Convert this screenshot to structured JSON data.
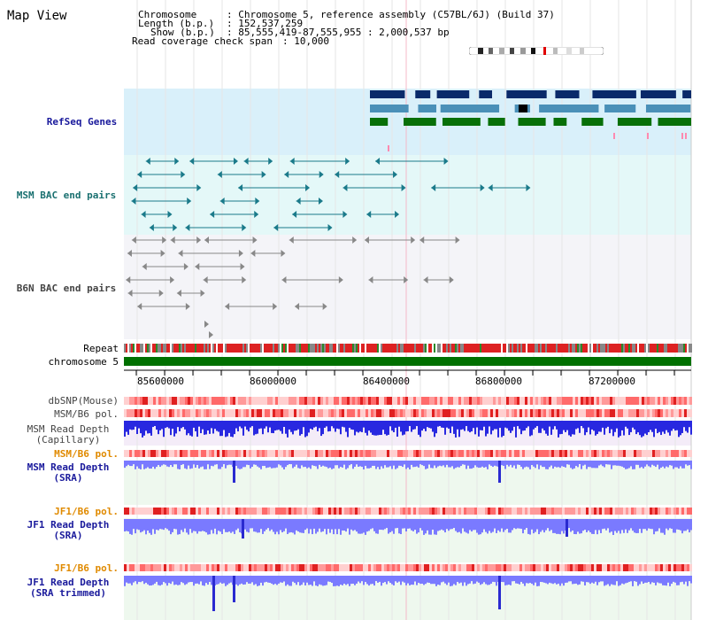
{
  "page": {
    "title": "Map View"
  },
  "info": {
    "chromosome_key": "Chromosome",
    "chromosome_value": ": Chromosome 5, reference assembly (C57BL/6J) (Build 37)",
    "length_key": "Length (b.p.)",
    "length_value": ": 152,537,259",
    "show_key": "Show (b.p.)",
    "show_value": ": 85,555,419-87,555,955 : 2,000,537 bp",
    "coverage_key": "Read coverage check span",
    "coverage_value": ": 10,000"
  },
  "tracks": {
    "refseq": "RefSeq Genes",
    "msm_bac": "MSM BAC end pairs",
    "b6n_bac": "B6N BAC end pairs",
    "repeat": "Repeat",
    "chromosome": "chromosome 5",
    "dbsnp": "dbSNP(Mouse)",
    "msm_b6_pol": "MSM/B6 pol.",
    "msm_depth_cap_1": "MSM Read Depth",
    "msm_depth_cap_2": "(Capillary)",
    "msm_b6_pol_2": "MSM/B6 pol.",
    "msm_depth_sra_1": "MSM Read Depth",
    "msm_depth_sra_2": "(SRA)",
    "jf1_b6_pol": "JF1/B6 pol.",
    "jf1_depth_sra_1": "JF1 Read Depth",
    "jf1_depth_sra_2": "(SRA)",
    "jf1_b6_pol_2": "JF1/B6 pol.",
    "jf1_depth_trim_1": "JF1 Read Depth",
    "jf1_depth_trim_2": "(SRA trimmed)"
  },
  "axis": {
    "ticks": [
      "85600000",
      "86000000",
      "86400000",
      "86800000",
      "87200000"
    ]
  },
  "colors": {
    "refseq_bg": "#d9f0fa",
    "msm_bac_bg": "#e4f8f8",
    "b6n_bac_bg": "#f4f4f8",
    "refseq_label": "#1a1a9c",
    "msm_label": "#1a7070",
    "b6n_label": "#444444",
    "orange_label": "#e08a00",
    "navy_label": "#1a1a9c",
    "gene_navy": "#0a2a6a",
    "gene_teal": "#4a90b8",
    "gene_green": "#087008",
    "bac_teal": "#1a7a8a",
    "bac_gray": "#888888",
    "chromosome_bar": "#007000",
    "depth_blue": "#2828e0",
    "depth_lightblue": "#7a7aff"
  }
}
